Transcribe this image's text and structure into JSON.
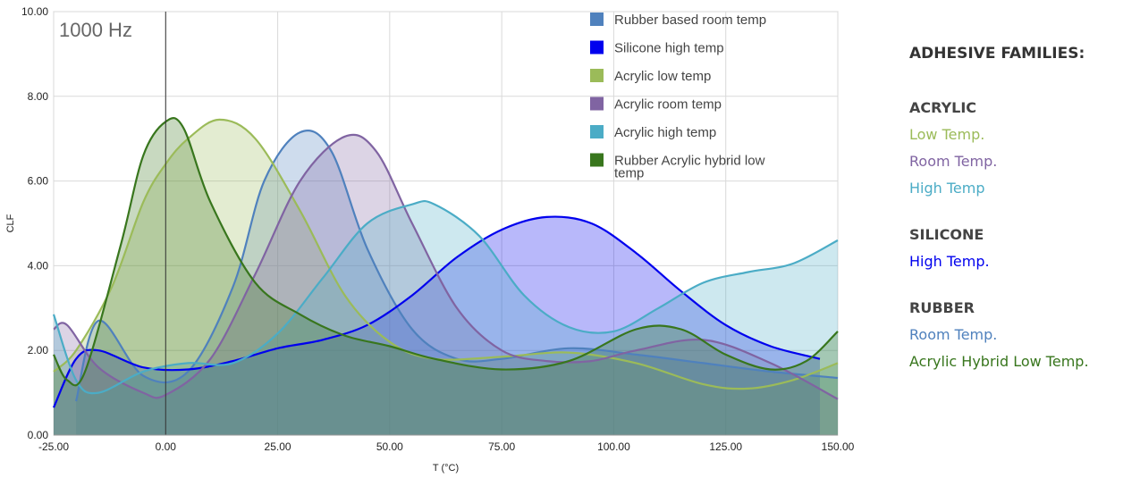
{
  "chart_data": {
    "type": "area",
    "annotation": "1000 Hz",
    "xlabel": "T (°C)",
    "ylabel": "CLF",
    "xlim": [
      -25,
      150
    ],
    "ylim": [
      0,
      10
    ],
    "x_ticks": [
      -25,
      0,
      25,
      50,
      75,
      100,
      125,
      150
    ],
    "x_tick_labels": [
      "-25.00",
      "0.00",
      "25.00",
      "50.00",
      "75.00",
      "100.00",
      "125.00",
      "150.00"
    ],
    "y_ticks": [
      0,
      2,
      4,
      6,
      8,
      10
    ],
    "y_tick_labels": [
      "0.00",
      "2.00",
      "4.00",
      "6.00",
      "8.00",
      "10.00"
    ],
    "grid": true,
    "legend_position": "top-right",
    "series": [
      {
        "name": "Rubber based room temp",
        "color": "#4f81bd",
        "x": [
          -20,
          -15,
          -5,
          5,
          15,
          22,
          30,
          37,
          45,
          55,
          65,
          75,
          90,
          105,
          120,
          135,
          150
        ],
        "y": [
          0.8,
          2.7,
          1.4,
          1.5,
          3.5,
          6.0,
          7.15,
          6.7,
          4.4,
          2.5,
          1.8,
          1.8,
          2.05,
          1.9,
          1.7,
          1.5,
          1.35
        ]
      },
      {
        "name": "Silicone high temp",
        "color": "#0000ee",
        "x": [
          -25,
          -20,
          -15,
          -5,
          5,
          15,
          25,
          35,
          45,
          55,
          65,
          75,
          85,
          95,
          105,
          115,
          125,
          135,
          146
        ],
        "y": [
          0.65,
          1.8,
          2.0,
          1.6,
          1.55,
          1.75,
          2.05,
          2.25,
          2.6,
          3.3,
          4.2,
          4.85,
          5.15,
          5.0,
          4.3,
          3.4,
          2.6,
          2.1,
          1.8
        ]
      },
      {
        "name": "Acrylic low temp",
        "color": "#9bbb59",
        "x": [
          -25,
          -20,
          -12,
          -5,
          0,
          5,
          12,
          20,
          30,
          40,
          50,
          60,
          75,
          90,
          105,
          120,
          130,
          140,
          150
        ],
        "y": [
          1.5,
          2.0,
          3.5,
          5.5,
          6.4,
          7.0,
          7.45,
          7.0,
          5.3,
          3.3,
          2.2,
          1.8,
          1.85,
          1.95,
          1.7,
          1.2,
          1.1,
          1.3,
          1.7
        ]
      },
      {
        "name": "Acrylic room temp",
        "color": "#8064a2",
        "x": [
          -25,
          -22,
          -15,
          -5,
          0,
          10,
          20,
          30,
          40,
          47,
          55,
          65,
          75,
          85,
          95,
          105,
          120,
          135,
          150
        ],
        "y": [
          2.5,
          2.6,
          1.6,
          1.0,
          0.95,
          1.8,
          3.8,
          6.0,
          7.05,
          6.7,
          5.0,
          3.0,
          2.0,
          1.75,
          1.75,
          2.0,
          2.25,
          1.7,
          0.85
        ]
      },
      {
        "name": "Acrylic high temp",
        "color": "#4bacc6",
        "x": [
          -25,
          -20,
          -15,
          -5,
          5,
          15,
          25,
          35,
          45,
          55,
          60,
          70,
          80,
          90,
          100,
          110,
          120,
          130,
          140,
          150
        ],
        "y": [
          2.85,
          1.3,
          1.0,
          1.5,
          1.7,
          1.7,
          2.4,
          3.7,
          5.0,
          5.45,
          5.45,
          4.7,
          3.3,
          2.55,
          2.45,
          3.0,
          3.6,
          3.85,
          4.05,
          4.6
        ]
      },
      {
        "name": "Rubber Acrylic hybrid low temp",
        "color": "#38761d",
        "x": [
          -25,
          -22,
          -18,
          -10,
          -5,
          0,
          4,
          10,
          20,
          30,
          40,
          50,
          60,
          75,
          90,
          105,
          115,
          125,
          135,
          143,
          150
        ],
        "y": [
          1.9,
          1.3,
          1.5,
          4.5,
          6.6,
          7.4,
          7.25,
          5.5,
          3.6,
          2.85,
          2.35,
          2.1,
          1.8,
          1.55,
          1.75,
          2.5,
          2.5,
          1.9,
          1.55,
          1.75,
          2.45
        ]
      }
    ]
  },
  "sidebar": {
    "heading": "ADHESIVE FAMILIES:",
    "groups": [
      {
        "title": "ACRYLIC",
        "items": [
          {
            "label": "Low Temp.",
            "color": "#9bbb59"
          },
          {
            "label": "Room Temp.",
            "color": "#8064a2"
          },
          {
            "label": "High Temp",
            "color": "#4bacc6"
          }
        ]
      },
      {
        "title": "SILICONE",
        "items": [
          {
            "label": "High Temp.",
            "color": "#0000ee"
          }
        ]
      },
      {
        "title": "RUBBER",
        "items": [
          {
            "label": "Room Temp.",
            "color": "#4f81bd"
          },
          {
            "label": "Acrylic Hybrid Low Temp.",
            "color": "#38761d"
          }
        ]
      }
    ]
  }
}
